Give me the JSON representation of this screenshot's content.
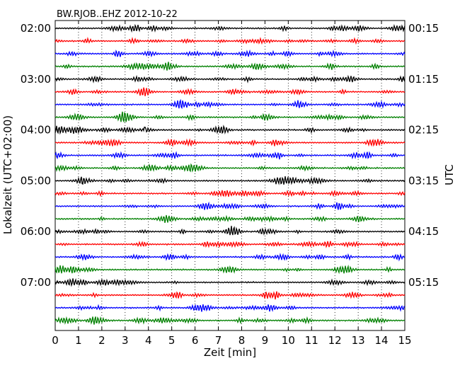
{
  "chart_data": {
    "type": "line",
    "title": "BW.RJOB..EHZ 2012-10-22",
    "xlabel": "Zeit  [min]",
    "ylabel_left": "Lokalzeit (UTC+02:00)",
    "ylabel_right": "UTC",
    "xlim": [
      0,
      15
    ],
    "x_ticks": [
      "0",
      "1",
      "2",
      "3",
      "4",
      "5",
      "6",
      "7",
      "8",
      "9",
      "10",
      "11",
      "12",
      "13",
      "14",
      "15"
    ],
    "y_ticks_left": [
      "02:00",
      "03:00",
      "04:00",
      "05:00",
      "06:00",
      "07:00"
    ],
    "y_ticks_right": [
      "00:15",
      "01:15",
      "02:15",
      "03:15",
      "04:15",
      "05:15"
    ],
    "n_traces": 24,
    "trace_colors": [
      "#000000",
      "#ff0000",
      "#0000ff",
      "#008000"
    ],
    "grid": "vertical dotted",
    "spikes": [
      {
        "trace": 8,
        "x": 3.85
      }
    ]
  }
}
